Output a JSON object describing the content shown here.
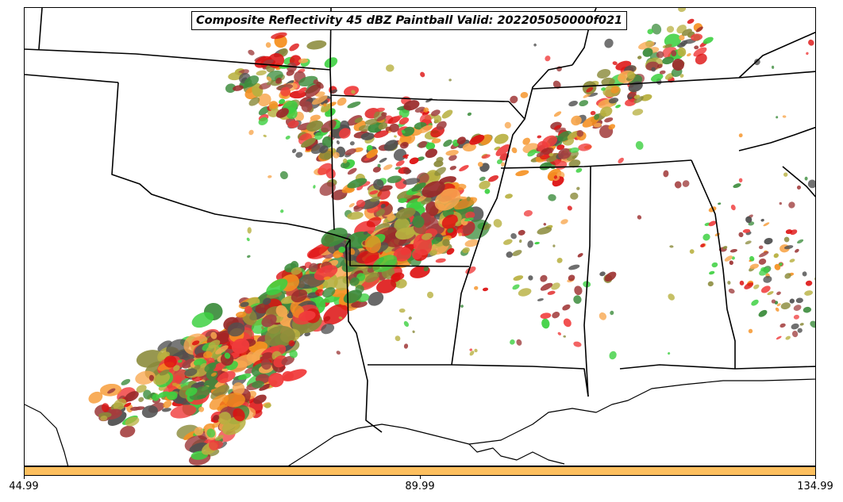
{
  "title": "Composite Reflectivity 45 dBZ Paintball Valid: 202205050000f021",
  "colorbar": {
    "color": "#fdbf5e",
    "ticks": [
      "44.99",
      "89.99",
      "134.99"
    ]
  },
  "paintball_colors": {
    "red": "#f03c3c",
    "dark_red": "#9a2a2a",
    "bright_red": "#dd1010",
    "orange": "#f59020",
    "light_orange": "#f8a850",
    "olive": "#b8b040",
    "dark_olive": "#8a8a3a",
    "green": "#3cd040",
    "dark_green": "#3c8c3c",
    "gray": "#505050",
    "brown": "#a04040"
  },
  "map_features": [
    "state-borders",
    "coastlines",
    "reflectivity-paintball"
  ]
}
